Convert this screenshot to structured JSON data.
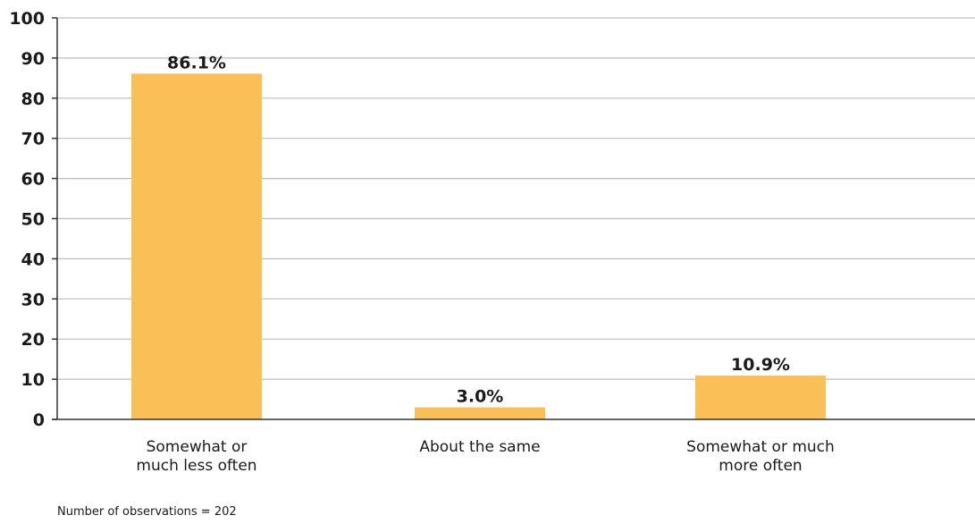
{
  "chart_data": {
    "type": "bar",
    "categories": [
      [
        "Somewhat or",
        "much less often"
      ],
      [
        "About the same"
      ],
      [
        "Somewhat or much",
        "more often"
      ]
    ],
    "values": [
      86.1,
      3.0,
      10.9
    ],
    "data_labels": [
      "86.1%",
      "3.0%",
      "10.9%"
    ],
    "ylim": [
      0,
      100
    ],
    "yticks": [
      0,
      10,
      20,
      30,
      40,
      50,
      60,
      70,
      80,
      90,
      100
    ],
    "grid": true,
    "bar_color": "#FBBF57",
    "grid_color": "#bdbdbd",
    "axis_color": "#333333"
  },
  "footnote": "Number of observations = 202"
}
